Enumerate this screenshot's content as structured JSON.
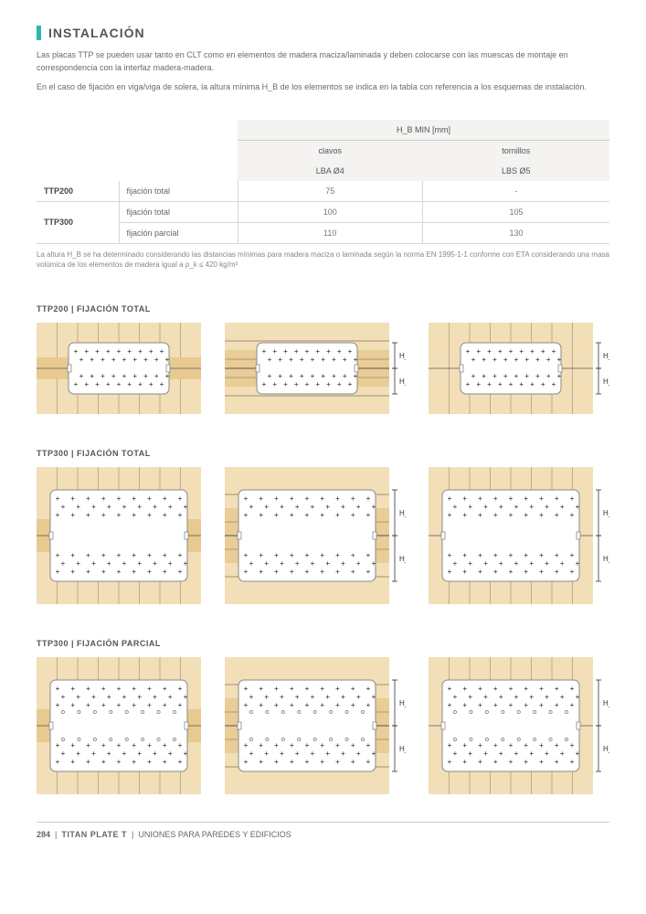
{
  "section_title": "INSTALACIÓN",
  "intro_p1": "Las placas TTP se pueden usar tanto en CLT como en elementos de madera maciza/laminada y deben colocarse con las muescas de montaje en correspondencia con la interfaz madera-madera.",
  "intro_p2": "En el caso de fijación en viga/viga de solera, la altura mínima H_B de los elementos se indica en la tabla con referencia a los esquemas de instalación.",
  "table": {
    "hb_header": "H_B MIN [mm]",
    "col_clavos": "clavos",
    "col_clavos_sub": "LBA Ø4",
    "col_tornillos": "tornillos",
    "col_tornillos_sub": "LBS Ø5",
    "rows": [
      {
        "code": "TTP200",
        "fix": "fijación total",
        "v1": "75",
        "v2": "-"
      },
      {
        "code": "TTP300",
        "fix": "fijación total",
        "v1": "100",
        "v2": "105"
      },
      {
        "code": "",
        "fix": "fijación parcial",
        "v1": "110",
        "v2": "130"
      }
    ]
  },
  "footnote": "La altura H_B se ha determinado considerando las distancias mínimas para madera maciza o laminada según la norma EN 1995-1-1 conforme con ETA considerando una masa volúmica de los elementos de madera igual a ρ_k ≤ 420 kg/m³",
  "diagrams": [
    {
      "title": "TTP200 | FIJACIÓN TOTAL"
    },
    {
      "title": "TTP300 | FIJACIÓN TOTAL"
    },
    {
      "title": "TTP300 | FIJACIÓN PARCIAL"
    }
  ],
  "hb_label": "H_B",
  "footer": {
    "page": "284",
    "product": "TITAN PLATE T",
    "subtitle": "UNIONES PARA PAREDES Y EDIFICIOS"
  },
  "colors": {
    "wood_light": "#f2dfb8",
    "wood_dark": "#e8c98f",
    "plate": "#ffffff",
    "plate_border": "#888",
    "line": "#9b8c6a"
  }
}
